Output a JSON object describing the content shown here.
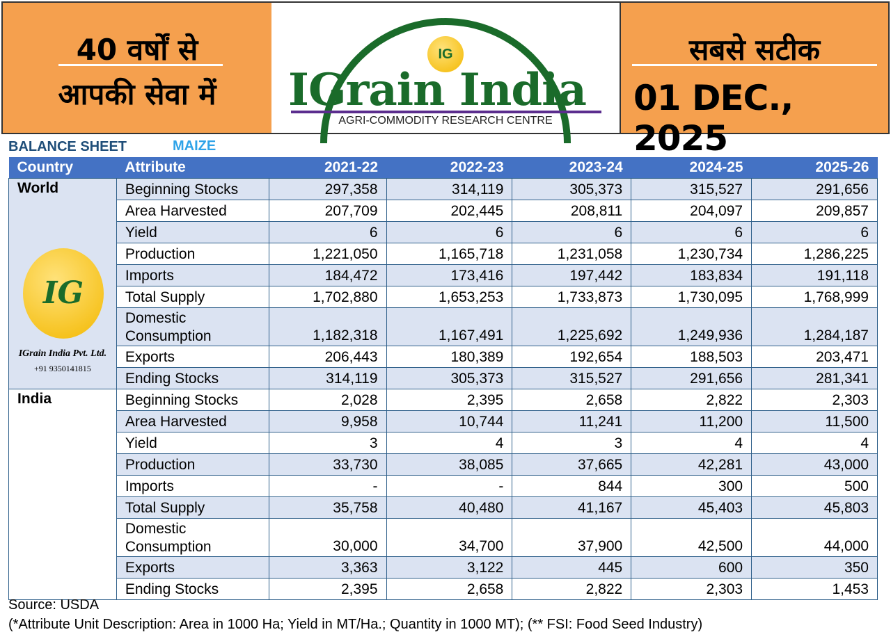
{
  "header": {
    "left_line1": "40 वर्षों से",
    "left_line2": "आपकी सेवा में",
    "brand": "IGrain India",
    "logo_mark": "IG",
    "tagline": "AGRI-COMMODITY RESEARCH CENTRE",
    "right_line1": "सबसे सटीक",
    "date": "01 DEC., 2025"
  },
  "sheet": {
    "title": "BALANCE SHEET",
    "commodity": "MAIZE"
  },
  "table": {
    "headers": [
      "Country",
      "Attribute",
      "2021-22",
      "2022-23",
      "2023-24",
      "2024-25",
      "2025-26"
    ],
    "logo_company": "IGrain India Pvt. Ltd.",
    "logo_phone": "+91 9350141815",
    "logo_mark": "IG",
    "groups": [
      {
        "country": "World",
        "rows": [
          {
            "attr": "Beginning Stocks",
            "v": [
              "297,358",
              "314,119",
              "305,373",
              "315,527",
              "291,656"
            ]
          },
          {
            "attr": "Area Harvested",
            "v": [
              "207,709",
              "202,445",
              "208,811",
              "204,097",
              "209,857"
            ]
          },
          {
            "attr": "Yield",
            "v": [
              "6",
              "6",
              "6",
              "6",
              "6"
            ]
          },
          {
            "attr": "Production",
            "v": [
              "1,221,050",
              "1,165,718",
              "1,231,058",
              "1,230,734",
              "1,286,225"
            ]
          },
          {
            "attr": "Imports",
            "v": [
              "184,472",
              "173,416",
              "197,442",
              "183,834",
              "191,118"
            ]
          },
          {
            "attr": "Total Supply",
            "v": [
              "1,702,880",
              "1,653,253",
              "1,733,873",
              "1,730,095",
              "1,768,999"
            ]
          },
          {
            "attr": "Domestic Consumption",
            "v": [
              "1,182,318",
              "1,167,491",
              "1,225,692",
              "1,249,936",
              "1,284,187"
            ]
          },
          {
            "attr": "Exports",
            "v": [
              "206,443",
              "180,389",
              "192,654",
              "188,503",
              "203,471"
            ]
          },
          {
            "attr": "Ending Stocks",
            "v": [
              "314,119",
              "305,373",
              "315,527",
              "291,656",
              "281,341"
            ]
          }
        ]
      },
      {
        "country": "India",
        "rows": [
          {
            "attr": "Beginning Stocks",
            "v": [
              "2,028",
              "2,395",
              "2,658",
              "2,822",
              "2,303"
            ]
          },
          {
            "attr": "Area Harvested",
            "v": [
              "9,958",
              "10,744",
              "11,241",
              "11,200",
              "11,500"
            ]
          },
          {
            "attr": "Yield",
            "v": [
              "3",
              "4",
              "3",
              "4",
              "4"
            ]
          },
          {
            "attr": "Production",
            "v": [
              "33,730",
              "38,085",
              "37,665",
              "42,281",
              "43,000"
            ]
          },
          {
            "attr": "Imports",
            "v": [
              "-",
              "-",
              "844",
              "300",
              "500"
            ]
          },
          {
            "attr": "Total Supply",
            "v": [
              "35,758",
              "40,480",
              "41,167",
              "45,403",
              "45,803"
            ]
          },
          {
            "attr": "Domestic Consumption",
            "v": [
              "30,000",
              "34,700",
              "37,900",
              "42,500",
              "44,000"
            ]
          },
          {
            "attr": "Exports",
            "v": [
              "3,363",
              "3,122",
              "445",
              "600",
              "350"
            ]
          },
          {
            "attr": "Ending Stocks",
            "v": [
              "2,395",
              "2,658",
              "2,822",
              "2,303",
              "1,453"
            ]
          }
        ]
      }
    ]
  },
  "footer": {
    "source": "Source: USDA",
    "note": "(*Attribute Unit Description: Area in 1000 Ha; Yield in MT/Ha.; Quantity in 1000 MT); (** FSI: Food Seed Industry)"
  }
}
